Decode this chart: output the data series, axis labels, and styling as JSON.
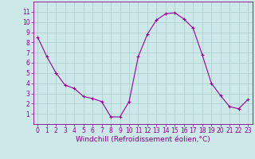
{
  "x": [
    0,
    1,
    2,
    3,
    4,
    5,
    6,
    7,
    8,
    9,
    10,
    11,
    12,
    13,
    14,
    15,
    16,
    17,
    18,
    19,
    20,
    21,
    22,
    23
  ],
  "y": [
    8.5,
    6.6,
    5.0,
    3.8,
    3.5,
    2.7,
    2.5,
    2.2,
    0.7,
    0.7,
    2.2,
    6.6,
    8.8,
    10.2,
    10.8,
    10.9,
    10.3,
    9.4,
    6.8,
    4.0,
    2.8,
    1.7,
    1.5,
    2.4
  ],
  "line_color": "#990099",
  "marker": "+",
  "marker_size": 3,
  "marker_linewidth": 0.8,
  "bg_color": "#cce8e8",
  "grid_color": "#aacccc",
  "xlabel": "Windchill (Refroidissement éolien,°C)",
  "xlabel_color": "#880088",
  "tick_color": "#880088",
  "ylim_min": 0,
  "ylim_max": 12,
  "xlim_min": -0.5,
  "xlim_max": 23.5,
  "yticks": [
    1,
    2,
    3,
    4,
    5,
    6,
    7,
    8,
    9,
    10,
    11
  ],
  "xticks": [
    0,
    1,
    2,
    3,
    4,
    5,
    6,
    7,
    8,
    9,
    10,
    11,
    12,
    13,
    14,
    15,
    16,
    17,
    18,
    19,
    20,
    21,
    22,
    23
  ],
  "tick_fontsize": 5.5,
  "xlabel_fontsize": 6.5,
  "spine_color": "#880088",
  "line_width": 0.8
}
